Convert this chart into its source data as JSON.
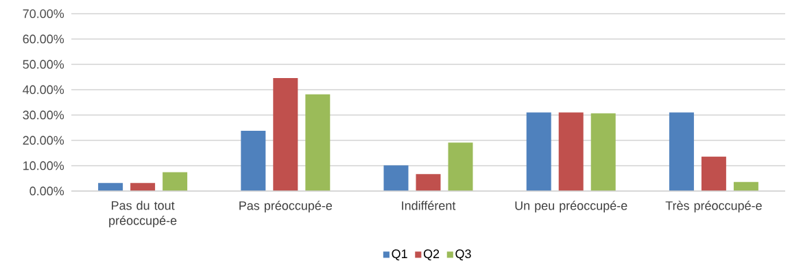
{
  "chart_data": {
    "type": "bar",
    "categories": [
      "Pas du tout préoccupé-e",
      "Pas préoccupé-e",
      "Indifférent",
      "Un peu préoccupé-e",
      "Très préoccupé-e"
    ],
    "series": [
      {
        "name": "Q1",
        "color": "#4f81bd",
        "values": [
          3.2,
          23.8,
          10.1,
          31.0,
          31.0
        ]
      },
      {
        "name": "Q2",
        "color": "#c0504d",
        "values": [
          3.2,
          44.6,
          6.7,
          31.0,
          13.6
        ]
      },
      {
        "name": "Q3",
        "color": "#9bbb59",
        "values": [
          7.4,
          38.2,
          19.1,
          30.7,
          3.6
        ]
      }
    ],
    "ylim": [
      0,
      70
    ],
    "yticks": [
      {
        "value": 0,
        "label": "0.00%"
      },
      {
        "value": 10,
        "label": "10.00%"
      },
      {
        "value": 20,
        "label": "20.00%"
      },
      {
        "value": 30,
        "label": "30.00%"
      },
      {
        "value": 40,
        "label": "40.00%"
      },
      {
        "value": 50,
        "label": "50.00%"
      },
      {
        "value": 60,
        "label": "60.00%"
      },
      {
        "value": 70,
        "label": "70.00%"
      }
    ],
    "grid": "y",
    "legend": "bottom"
  }
}
